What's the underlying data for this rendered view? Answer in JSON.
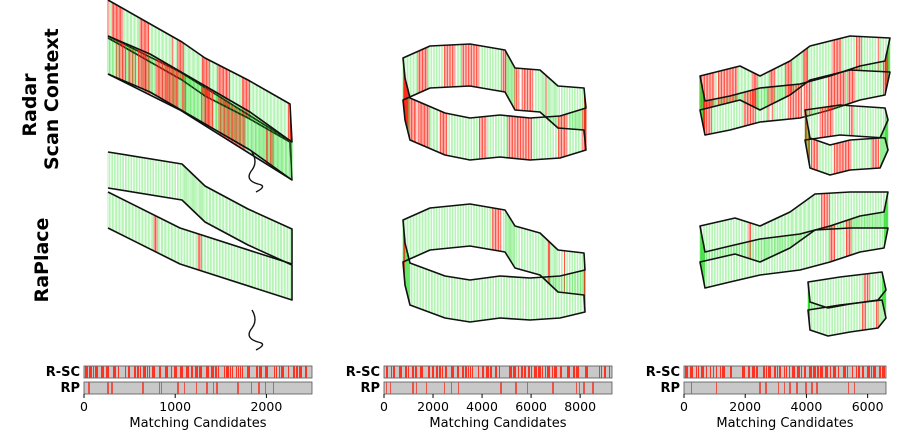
{
  "row_labels": {
    "top_line1": "Radar",
    "top_line2": "Scan Context",
    "bottom": "RaPlace"
  },
  "strip_labels": {
    "a": "R-SC",
    "b": "RP"
  },
  "colors": {
    "match_correct": "#22dd22",
    "match_wrong": "#ff2a1a",
    "strip_bg": "#c8c8c8",
    "trajectory": "#111111"
  },
  "panels": [
    {
      "id": "seq1",
      "xlabel": "Matching Candidates",
      "xticks": [
        "0",
        "1000",
        "2000"
      ],
      "xlim": [
        0,
        2500
      ],
      "sc_error_level": "high",
      "rp_error_level": "low"
    },
    {
      "id": "seq2",
      "xlabel": "Matching Candidates",
      "xticks": [
        "0",
        "2000",
        "4000",
        "6000",
        "8000"
      ],
      "xlim": [
        0,
        9300
      ],
      "sc_error_level": "high",
      "rp_error_level": "low"
    },
    {
      "id": "seq3",
      "xlabel": "Matching Candidates",
      "xticks": [
        "0",
        "2000",
        "4000",
        "6000"
      ],
      "xlim": [
        0,
        6600
      ],
      "sc_error_level": "high",
      "rp_error_level": "low"
    }
  ]
}
